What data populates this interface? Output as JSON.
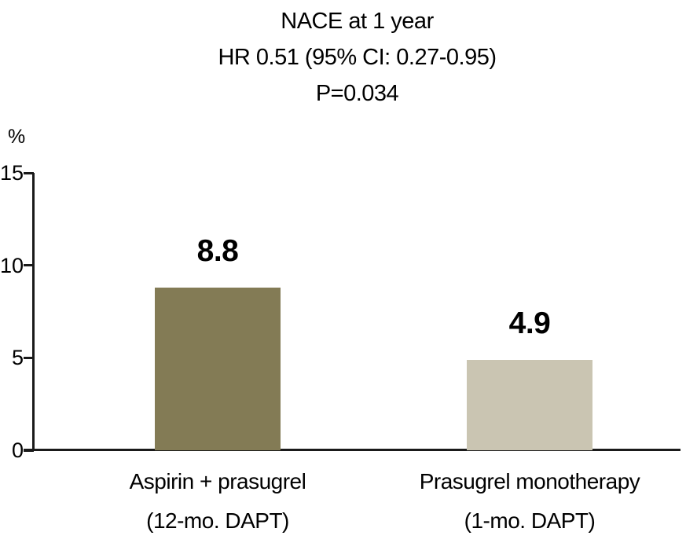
{
  "title": {
    "line1": "NACE at 1 year",
    "line2": "HR 0.51 (95% CI: 0.27-0.95)",
    "line3": "P=0.034"
  },
  "chart_data": {
    "type": "bar",
    "title": "NACE at 1 year",
    "subtitle": "HR 0.51 (95% CI: 0.27-0.95)",
    "p_value": "P=0.034",
    "ylabel": "%",
    "ylim": [
      0,
      15
    ],
    "yticks": [
      0,
      5,
      10,
      15
    ],
    "grid": false,
    "legend": false,
    "categories": [
      "Aspirin + prasugrel (12-mo. DAPT)",
      "Prasugrel monotherapy (1-mo. DAPT)"
    ],
    "category_lines": [
      [
        "Aspirin + prasugrel",
        "(12-mo. DAPT)"
      ],
      [
        "Prasugrel monotherapy",
        "(1-mo. DAPT)"
      ]
    ],
    "values": [
      8.8,
      4.9
    ],
    "value_labels": [
      "8.8",
      "4.9"
    ],
    "bar_colors": [
      "#837B55",
      "#CAC5B2"
    ],
    "axis_color": "#1a1a1a",
    "text_color": "#000000"
  }
}
